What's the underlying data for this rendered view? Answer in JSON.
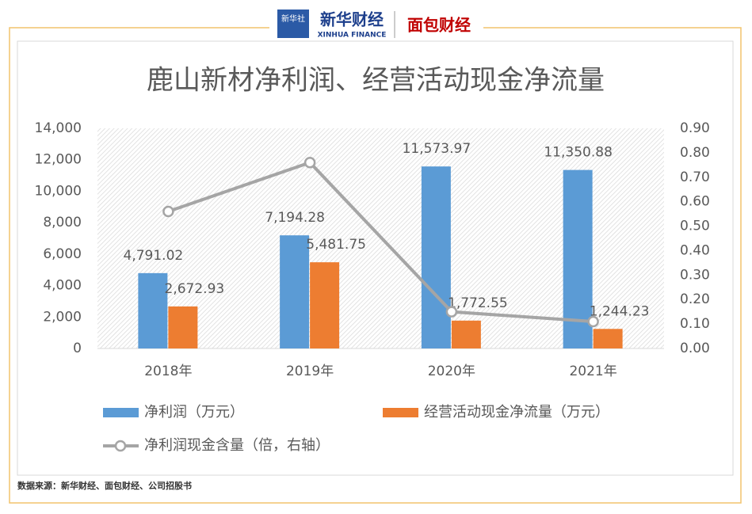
{
  "header": {
    "logo1": "新华社",
    "logo2": "新华财经",
    "logo2_sub": "XINHUA FINANCE",
    "logo3": "面包财经"
  },
  "source": "数据来源：新华财经、面包财经、公司招股书",
  "chart_data": {
    "type": "bar",
    "title": "鹿山新材净利润、经营活动现金净流量",
    "categories": [
      "2018年",
      "2019年",
      "2020年",
      "2021年"
    ],
    "series": [
      {
        "name": "净利润（万元）",
        "color": "#5b9bd5",
        "values": [
          4791.02,
          7194.28,
          11573.97,
          11350.88
        ],
        "value_labels": [
          "4,791.02",
          "7,194.28",
          "11,573.97",
          "11,350.88"
        ]
      },
      {
        "name": "经营活动现金净流量（万元）",
        "color": "#ed7d31",
        "values": [
          2672.93,
          5481.75,
          1772.55,
          1244.23
        ],
        "value_labels": [
          "2,672.93",
          "5,481.75",
          "1,772.55",
          "1,244.23"
        ]
      },
      {
        "name": "净利润现金含量（倍，右轴）",
        "color": "#a5a5a5",
        "type": "line",
        "axis": "y2",
        "values": [
          0.56,
          0.76,
          0.15,
          0.11
        ]
      }
    ],
    "ylim": [
      0,
      14000
    ],
    "yticks": [
      0,
      {
        "value": 2000,
        "label": "2,000"
      },
      {
        "value": 4000,
        "label": "4,000"
      },
      {
        "value": 6000,
        "label": "6,000"
      },
      {
        "value": 8000,
        "label": "8,000"
      },
      {
        "value": 10000,
        "label": "10,000"
      },
      {
        "value": 12000,
        "label": "12,000"
      },
      {
        "value": 14000,
        "label": "14,000"
      }
    ],
    "y2lim": [
      0,
      0.9
    ],
    "y2ticks": [
      {
        "value": 0,
        "label": "0.00"
      },
      {
        "value": 0.1,
        "label": "0.10"
      },
      {
        "value": 0.2,
        "label": "0.20"
      },
      {
        "value": 0.3,
        "label": "0.30"
      },
      {
        "value": 0.4,
        "label": "0.40"
      },
      {
        "value": 0.5,
        "label": "0.50"
      },
      {
        "value": 0.6,
        "label": "0.60"
      },
      {
        "value": 0.7,
        "label": "0.70"
      },
      {
        "value": 0.8,
        "label": "0.80"
      },
      {
        "value": 0.9,
        "label": "0.90"
      }
    ]
  }
}
